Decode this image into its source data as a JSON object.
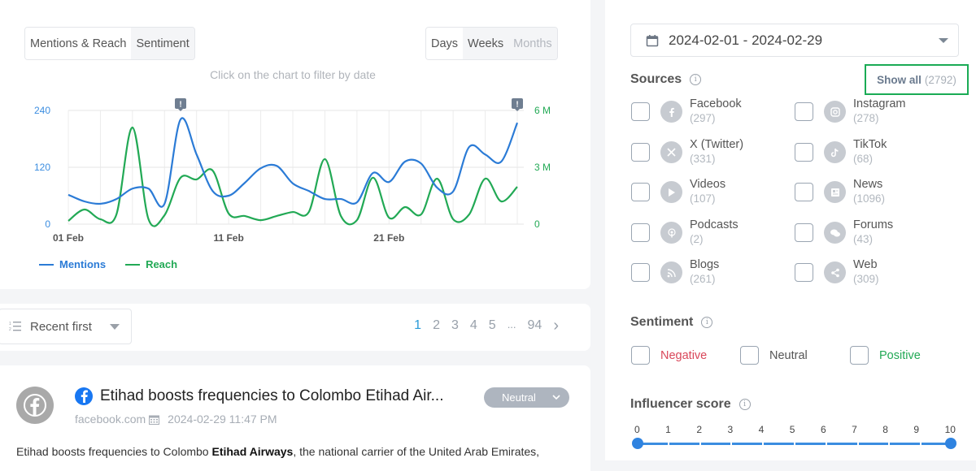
{
  "chart_panel": {
    "metric_tabs": [
      {
        "label": "Mentions & Reach",
        "active": true
      },
      {
        "label": "Sentiment",
        "active": false
      }
    ],
    "period_tabs": [
      {
        "label": "Days",
        "active": true
      },
      {
        "label": "Weeks",
        "active": false
      },
      {
        "label": "Months",
        "active": false,
        "disabled": true
      }
    ],
    "hint": "Click on the chart to filter by date",
    "legend": [
      {
        "label": "Mentions",
        "color": "#2b7bd6"
      },
      {
        "label": "Reach",
        "color": "#22a955"
      }
    ]
  },
  "chart_data": {
    "type": "line",
    "title": "",
    "xlabel": "",
    "ylabel": "Mentions",
    "y2label": "Reach",
    "x": [
      "01 Feb",
      "02 Feb",
      "03 Feb",
      "04 Feb",
      "05 Feb",
      "06 Feb",
      "07 Feb",
      "08 Feb",
      "09 Feb",
      "10 Feb",
      "11 Feb",
      "12 Feb",
      "13 Feb",
      "14 Feb",
      "15 Feb",
      "16 Feb",
      "17 Feb",
      "18 Feb",
      "19 Feb",
      "20 Feb",
      "21 Feb",
      "22 Feb",
      "23 Feb",
      "24 Feb",
      "25 Feb",
      "26 Feb",
      "27 Feb",
      "28 Feb",
      "29 Feb"
    ],
    "x_tick_labels": [
      "01 Feb",
      "11 Feb",
      "21 Feb"
    ],
    "y_ticks": [
      "0",
      "120",
      "240"
    ],
    "y2_ticks": [
      "0",
      "3 M",
      "6 M"
    ],
    "ylim": [
      0,
      240
    ],
    "y2lim": [
      0,
      6000000
    ],
    "grid": true,
    "legend_position": "bottom-left",
    "annotations": [
      {
        "x": "08 Feb",
        "label": "!"
      },
      {
        "x": "29 Feb",
        "label": "!"
      }
    ],
    "series": [
      {
        "name": "Mentions",
        "axis": "left",
        "color": "#2b7bd6",
        "values": [
          62,
          48,
          43,
          53,
          75,
          75,
          43,
          221,
          147,
          70,
          60,
          87,
          118,
          123,
          86,
          70,
          53,
          53,
          46,
          108,
          89,
          132,
          128,
          77,
          69,
          163,
          147,
          132,
          214
        ]
      },
      {
        "name": "Reach",
        "axis": "right",
        "color": "#22a955",
        "values": [
          170000,
          770000,
          260000,
          510000,
          5100000,
          260000,
          470000,
          2450000,
          2360000,
          2830000,
          560000,
          430000,
          210000,
          430000,
          640000,
          640000,
          3430000,
          430000,
          210000,
          2450000,
          340000,
          900000,
          510000,
          2400000,
          260000,
          510000,
          2400000,
          1200000,
          1970000
        ]
      }
    ]
  },
  "list_controls": {
    "sort_label": "Recent first",
    "pages": [
      "1",
      "2",
      "3",
      "4",
      "5",
      "...",
      "94"
    ],
    "current_page": "1",
    "next_glyph": "›"
  },
  "post": {
    "title": "Etihad boosts frequencies to Colombo Etihad Air...",
    "source": "facebook.com",
    "datetime": "2024-02-29 11:47 PM",
    "sentiment": "Neutral",
    "body_prefix": "Etihad boosts frequencies to Colombo ",
    "body_bold": "Etihad Airways",
    "body_suffix": ", the national carrier of the United Arab Emirates,"
  },
  "filters": {
    "date_range": "2024-02-01 - 2024-02-29",
    "sources_title": "Sources",
    "show_all_label": "Show all",
    "show_all_count": "(2792)",
    "sources": [
      {
        "name": "Facebook",
        "count": "(297)",
        "icon": "facebook-icon"
      },
      {
        "name": "Instagram",
        "count": "(278)",
        "icon": "instagram-icon"
      },
      {
        "name": "X (Twitter)",
        "count": "(331)",
        "icon": "x-twitter-icon"
      },
      {
        "name": "TikTok",
        "count": "(68)",
        "icon": "tiktok-icon"
      },
      {
        "name": "Videos",
        "count": "(107)",
        "icon": "video-play-icon"
      },
      {
        "name": "News",
        "count": "(1096)",
        "icon": "newspaper-icon"
      },
      {
        "name": "Podcasts",
        "count": "(2)",
        "icon": "podcast-icon"
      },
      {
        "name": "Forums",
        "count": "(43)",
        "icon": "forum-chat-icon"
      },
      {
        "name": "Blogs",
        "count": "(261)",
        "icon": "rss-icon"
      },
      {
        "name": "Web",
        "count": "(309)",
        "icon": "share-icon"
      }
    ],
    "sentiment_title": "Sentiment",
    "sentiment_options": [
      {
        "label": "Negative",
        "color": "#d9475a"
      },
      {
        "label": "Neutral",
        "color": "#555555"
      },
      {
        "label": "Positive",
        "color": "#22a955"
      }
    ],
    "influencer_title": "Influencer score",
    "influencer_ticks": [
      "0",
      "1",
      "2",
      "3",
      "4",
      "5",
      "6",
      "7",
      "8",
      "9",
      "10"
    ],
    "influencer_min": "0",
    "influencer_max": "10"
  }
}
